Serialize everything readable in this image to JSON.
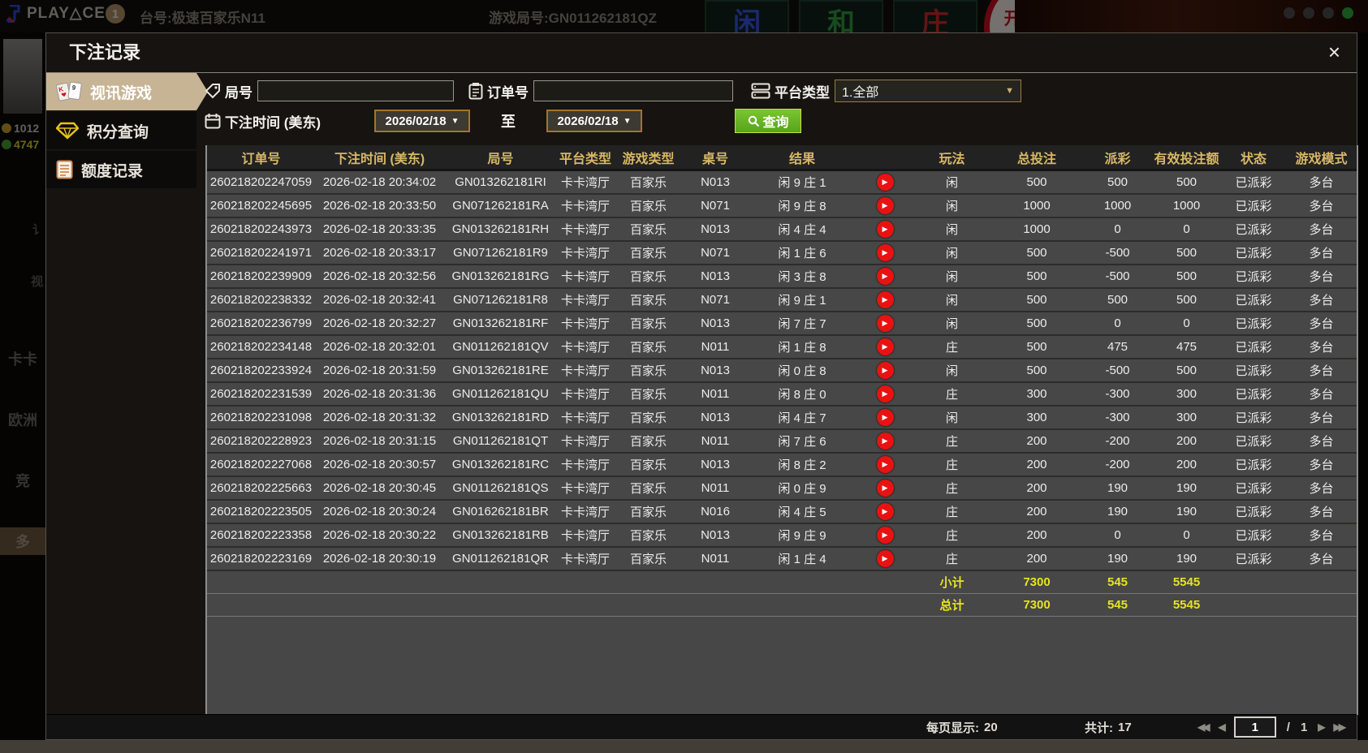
{
  "colors": {
    "header_gold": "#d8b866",
    "payout_win_red": "#bf2745",
    "payout_loss_green": "#58d414",
    "status_paid_green": "#27d427",
    "totals_yellow": "#e6e321",
    "active_tab_tan": "#c7b495",
    "search_button_green": "#6ab82e",
    "date_border_orange": "#a4742c"
  },
  "topbar": {
    "brand": "PLAY△CE",
    "badge": "1",
    "table_label": "台号:极速百家乐N11",
    "round_label": "游戏局号:GN011262181QZ",
    "bet_tiles": [
      {
        "label": "闲"
      },
      {
        "label": "和"
      },
      {
        "label": "庄"
      }
    ],
    "status_circle": "开牌中"
  },
  "left_rail": {
    "coins": "1012",
    "points": "4747",
    "partials": [
      "讠",
      "视"
    ],
    "items": [
      "卡卡",
      "欧洲",
      "竞",
      "多"
    ]
  },
  "modal": {
    "title": "下注记录",
    "tabs": [
      {
        "label": "视讯游戏"
      },
      {
        "label": "积分查询"
      },
      {
        "label": "额度记录"
      }
    ],
    "filters": {
      "round_label": "局号",
      "order_label": "订单号",
      "platform_label": "平台类型",
      "platform_value": "1.全部",
      "time_label": "下注时间 (美东)",
      "date_from": "2026/02/18",
      "to_label": "至",
      "date_to": "2026/02/18",
      "search_label": "查询"
    },
    "table": {
      "headers": [
        "订单号",
        "下注时间 (美东)",
        "局号",
        "平台类型",
        "游戏类型",
        "桌号",
        "结果",
        "玩法",
        "总投注",
        "派彩",
        "有效投注额",
        "状态",
        "游戏模式"
      ],
      "rows": [
        [
          "260218202247059",
          "2026-02-18 20:34:02",
          "GN013262181RI",
          "卡卡湾厅",
          "百家乐",
          "N013",
          "闲 9 庄 1",
          "闲",
          "500",
          "500",
          "500",
          "已派彩",
          "多台"
        ],
        [
          "260218202245695",
          "2026-02-18 20:33:50",
          "GN071262181RA",
          "卡卡湾厅",
          "百家乐",
          "N071",
          "闲 9 庄 8",
          "闲",
          "1000",
          "1000",
          "1000",
          "已派彩",
          "多台"
        ],
        [
          "260218202243973",
          "2026-02-18 20:33:35",
          "GN013262181RH",
          "卡卡湾厅",
          "百家乐",
          "N013",
          "闲 4 庄 4",
          "闲",
          "1000",
          "0",
          "0",
          "已派彩",
          "多台"
        ],
        [
          "260218202241971",
          "2026-02-18 20:33:17",
          "GN071262181R9",
          "卡卡湾厅",
          "百家乐",
          "N071",
          "闲 1 庄 6",
          "闲",
          "500",
          "-500",
          "500",
          "已派彩",
          "多台"
        ],
        [
          "260218202239909",
          "2026-02-18 20:32:56",
          "GN013262181RG",
          "卡卡湾厅",
          "百家乐",
          "N013",
          "闲 3 庄 8",
          "闲",
          "500",
          "-500",
          "500",
          "已派彩",
          "多台"
        ],
        [
          "260218202238332",
          "2026-02-18 20:32:41",
          "GN071262181R8",
          "卡卡湾厅",
          "百家乐",
          "N071",
          "闲 9 庄 1",
          "闲",
          "500",
          "500",
          "500",
          "已派彩",
          "多台"
        ],
        [
          "260218202236799",
          "2026-02-18 20:32:27",
          "GN013262181RF",
          "卡卡湾厅",
          "百家乐",
          "N013",
          "闲 7 庄 7",
          "闲",
          "500",
          "0",
          "0",
          "已派彩",
          "多台"
        ],
        [
          "260218202234148",
          "2026-02-18 20:32:01",
          "GN011262181QV",
          "卡卡湾厅",
          "百家乐",
          "N011",
          "闲 1 庄 8",
          "庄",
          "500",
          "475",
          "475",
          "已派彩",
          "多台"
        ],
        [
          "260218202233924",
          "2026-02-18 20:31:59",
          "GN013262181RE",
          "卡卡湾厅",
          "百家乐",
          "N013",
          "闲 0 庄 8",
          "闲",
          "500",
          "-500",
          "500",
          "已派彩",
          "多台"
        ],
        [
          "260218202231539",
          "2026-02-18 20:31:36",
          "GN011262181QU",
          "卡卡湾厅",
          "百家乐",
          "N011",
          "闲 8 庄 0",
          "庄",
          "300",
          "-300",
          "300",
          "已派彩",
          "多台"
        ],
        [
          "260218202231098",
          "2026-02-18 20:31:32",
          "GN013262181RD",
          "卡卡湾厅",
          "百家乐",
          "N013",
          "闲 4 庄 7",
          "闲",
          "300",
          "-300",
          "300",
          "已派彩",
          "多台"
        ],
        [
          "260218202228923",
          "2026-02-18 20:31:15",
          "GN011262181QT",
          "卡卡湾厅",
          "百家乐",
          "N011",
          "闲 7 庄 6",
          "庄",
          "200",
          "-200",
          "200",
          "已派彩",
          "多台"
        ],
        [
          "260218202227068",
          "2026-02-18 20:30:57",
          "GN013262181RC",
          "卡卡湾厅",
          "百家乐",
          "N013",
          "闲 8 庄 2",
          "庄",
          "200",
          "-200",
          "200",
          "已派彩",
          "多台"
        ],
        [
          "260218202225663",
          "2026-02-18 20:30:45",
          "GN011262181QS",
          "卡卡湾厅",
          "百家乐",
          "N011",
          "闲 0 庄 9",
          "庄",
          "200",
          "190",
          "190",
          "已派彩",
          "多台"
        ],
        [
          "260218202223505",
          "2026-02-18 20:30:24",
          "GN016262181BR",
          "卡卡湾厅",
          "百家乐",
          "N016",
          "闲 4 庄 5",
          "庄",
          "200",
          "190",
          "190",
          "已派彩",
          "多台"
        ],
        [
          "260218202223358",
          "2026-02-18 20:30:22",
          "GN013262181RB",
          "卡卡湾厅",
          "百家乐",
          "N013",
          "闲 9 庄 9",
          "庄",
          "200",
          "0",
          "0",
          "已派彩",
          "多台"
        ],
        [
          "260218202223169",
          "2026-02-18 20:30:19",
          "GN011262181QR",
          "卡卡湾厅",
          "百家乐",
          "N011",
          "闲 1 庄 4",
          "庄",
          "200",
          "190",
          "190",
          "已派彩",
          "多台"
        ]
      ],
      "subtotal": {
        "label": "小计",
        "total_bet": "7300",
        "payout": "545",
        "valid_bet": "5545"
      },
      "grand_total": {
        "label": "总计",
        "total_bet": "7300",
        "payout": "545",
        "valid_bet": "5545"
      }
    },
    "footer": {
      "per_page_label": "每页显示:",
      "per_page_value": "20",
      "total_count_label": "共计:",
      "total_count_value": "17",
      "page_current": "1",
      "page_divider": "/",
      "page_total": "1"
    }
  },
  "icons": {
    "close": "×",
    "dropdown": "▼",
    "play": "▶",
    "page_first": "◀◀",
    "page_prev": "◀",
    "page_next": "▶",
    "page_last": "▶▶"
  }
}
